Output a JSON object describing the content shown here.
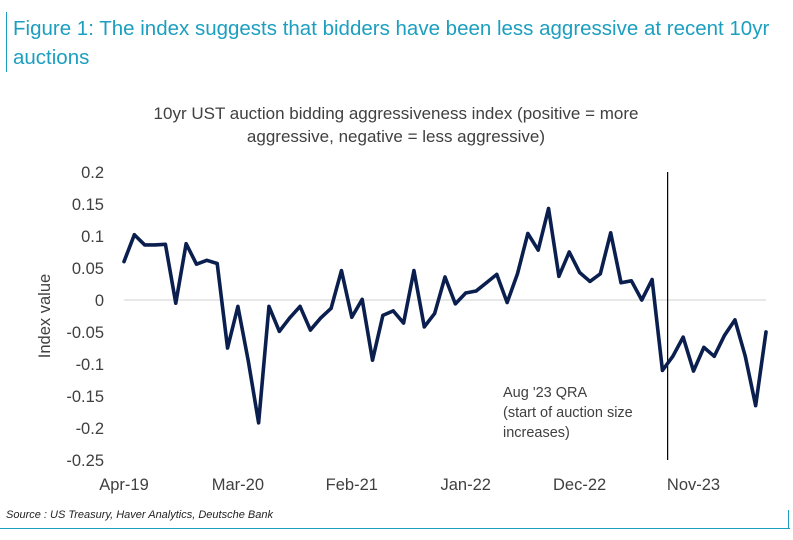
{
  "figure_title": "Figure 1: The index suggests that bidders have been less aggressive at recent 10yr auctions",
  "source": "Source : US Treasury, Haver Analytics, Deutsche Bank",
  "colors": {
    "accent": "#1c9fbf",
    "series": "#0b1f4f",
    "axis": "#d9d9d9",
    "text": "#404040"
  },
  "chart_data": {
    "type": "line",
    "title_lines": [
      "10yr UST auction bidding aggressiveness index (positive = more",
      "aggressive, negative = less aggressive)"
    ],
    "ylabel": "Index value",
    "ylim": [
      -0.25,
      0.2
    ],
    "yticks": [
      0.2,
      0.15,
      0.1,
      0.05,
      0,
      -0.05,
      -0.1,
      -0.15,
      -0.2,
      -0.25
    ],
    "ytick_labels": [
      "0.2",
      "0.15",
      "0.1",
      "0.05",
      "0",
      "-0.05",
      "-0.1",
      "-0.15",
      "-0.2",
      "-0.25"
    ],
    "xtick_labels": [
      {
        "label": "Apr-19",
        "index": 0
      },
      {
        "label": "Mar-20",
        "index": 11
      },
      {
        "label": "Feb-21",
        "index": 22
      },
      {
        "label": "Jan-22",
        "index": 33
      },
      {
        "label": "Dec-22",
        "index": 44
      },
      {
        "label": "Nov-23",
        "index": 55
      }
    ],
    "grid": false,
    "series": [
      {
        "values": [
          0.06,
          0.102,
          0.086,
          0.086,
          0.087,
          -0.005,
          0.088,
          0.056,
          0.062,
          0.057,
          -0.075,
          -0.01,
          -0.095,
          -0.192,
          -0.01,
          -0.049,
          -0.028,
          -0.01,
          -0.047,
          -0.028,
          -0.013,
          0.046,
          -0.027,
          0.001,
          -0.094,
          -0.024,
          -0.017,
          -0.036,
          0.046,
          -0.042,
          -0.021,
          0.036,
          -0.006,
          0.011,
          0.014,
          0.027,
          0.04,
          -0.004,
          0.041,
          0.104,
          0.078,
          0.143,
          0.037,
          0.075,
          0.043,
          0.029,
          0.041,
          0.105,
          0.027,
          0.03,
          0.0,
          0.032,
          -0.11,
          -0.088,
          -0.058,
          -0.111,
          -0.074,
          -0.088,
          -0.055,
          -0.031,
          -0.088,
          -0.165,
          -0.05
        ]
      }
    ],
    "annotation": {
      "x_index": 52.5,
      "lines": [
        "Aug '23 QRA",
        "(start of auction size",
        "increases)"
      ]
    }
  }
}
